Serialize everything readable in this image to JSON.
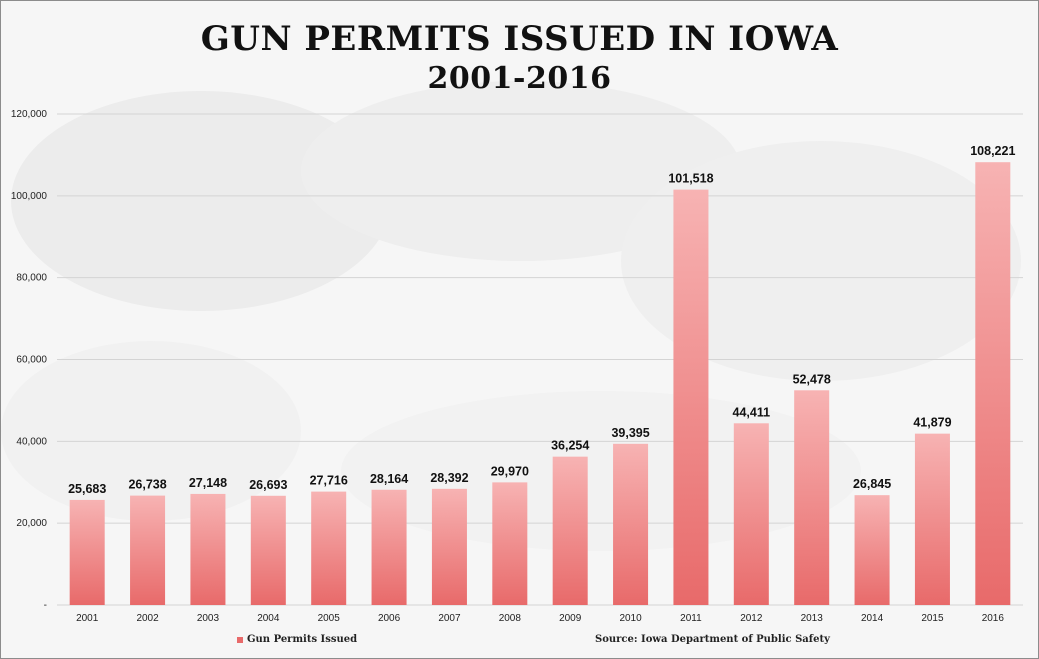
{
  "chart_data": {
    "type": "bar",
    "title": "GUN PERMITS ISSUED IN IOWA",
    "subtitle": "2001-2016",
    "categories": [
      "2001",
      "2002",
      "2003",
      "2004",
      "2005",
      "2006",
      "2007",
      "2008",
      "2009",
      "2010",
      "2011",
      "2012",
      "2013",
      "2014",
      "2015",
      "2016"
    ],
    "series": [
      {
        "name": "Gun Permits Issued",
        "values": [
          25683,
          26738,
          27148,
          26693,
          27716,
          28164,
          28392,
          29970,
          36254,
          39395,
          101518,
          44411,
          52478,
          26845,
          41879,
          108221
        ],
        "data_labels": [
          "25,683",
          "26,738",
          "27,148",
          "26,693",
          "27,716",
          "28,164",
          "28,392",
          "29,970",
          "36,254",
          "39,395",
          "101,518",
          "44,411",
          "52,478",
          "26,845",
          "41,879",
          "108,221"
        ]
      }
    ],
    "ylim": [
      0,
      120000
    ],
    "yticks": [
      0,
      20000,
      40000,
      60000,
      80000,
      100000,
      120000
    ],
    "ytick_labels": [
      "-",
      "20,000",
      "40,000",
      "60,000",
      "80,000",
      "100,000",
      "120,000"
    ],
    "grid": true,
    "legend_position": "bottom-left",
    "bar_color": "#e86a6a",
    "bar_color_light": "#f7b3b3",
    "source": "Source: Iowa Department of Public Safety"
  }
}
